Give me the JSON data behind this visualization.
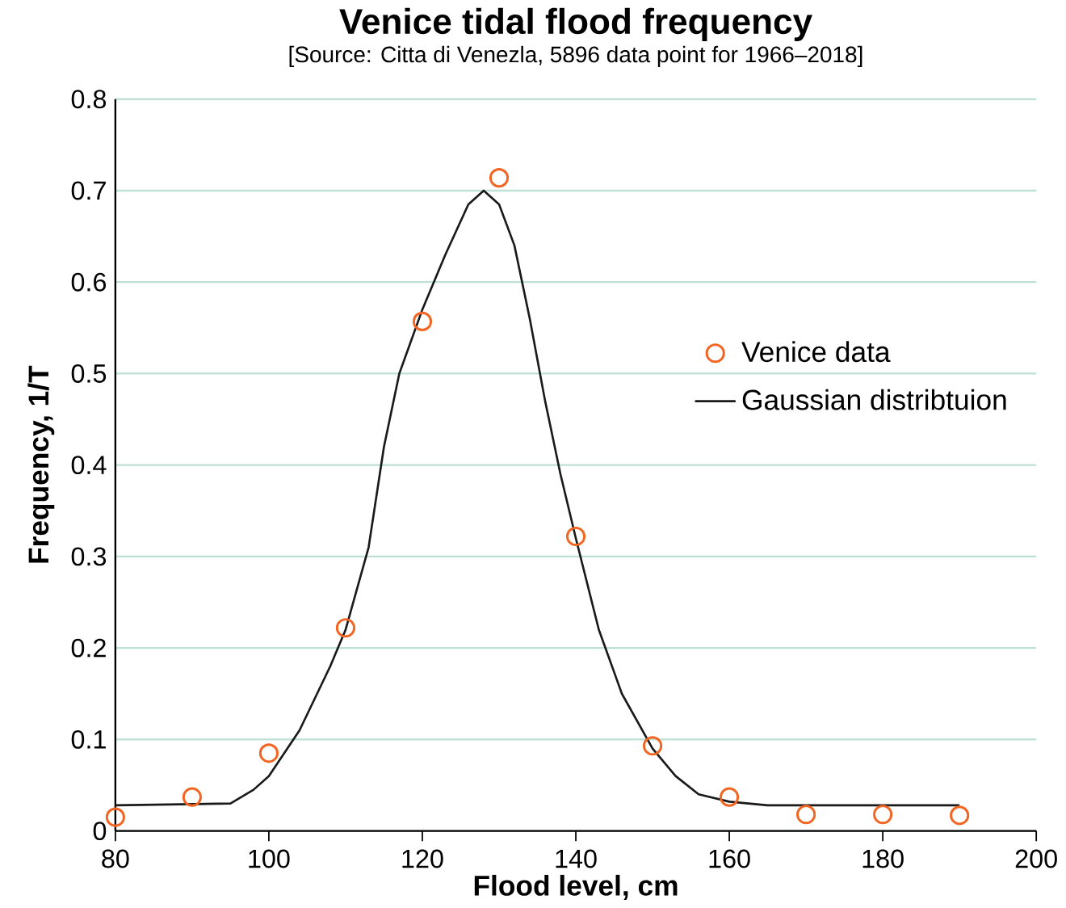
{
  "chart_data": {
    "type": "scatter",
    "title": "Venice tidal flood frequency",
    "subtitle": "[Source: Citta di Venezla, 5896 data point for 1966–2018]",
    "xlabel": "Flood level, cm",
    "ylabel": "Frequency, 1/T",
    "xlim": [
      80,
      200
    ],
    "ylim": [
      0,
      0.8
    ],
    "xticks": [
      80,
      100,
      120,
      140,
      160,
      180,
      200
    ],
    "yticks": [
      0,
      0.1,
      0.2,
      0.3,
      0.4,
      0.5,
      0.6,
      0.7,
      0.8
    ],
    "grid": "y",
    "legend": "right",
    "series": [
      {
        "name": "Venice data",
        "marker": "circle",
        "color": "#f26522",
        "x": [
          80,
          90,
          100,
          110,
          120,
          130,
          140,
          150,
          160,
          170,
          180,
          190
        ],
        "values": [
          0.015,
          0.037,
          0.085,
          0.222,
          0.557,
          0.714,
          0.322,
          0.093,
          0.037,
          0.018,
          0.018,
          0.017
        ]
      },
      {
        "name": "Gaussian distribtuion",
        "type": "line",
        "marker": "none",
        "line_style": "solid",
        "color": "#1a1a1a",
        "x": [
          80,
          95,
          98,
          100,
          104,
          108,
          110,
          113,
          115,
          117,
          120,
          123,
          126,
          128,
          130,
          132,
          134,
          136,
          138,
          140,
          143,
          146,
          150,
          153,
          156,
          160,
          165,
          190
        ],
        "values": [
          0.028,
          0.03,
          0.045,
          0.06,
          0.11,
          0.18,
          0.22,
          0.31,
          0.42,
          0.5,
          0.57,
          0.63,
          0.685,
          0.7,
          0.685,
          0.64,
          0.56,
          0.47,
          0.39,
          0.32,
          0.22,
          0.15,
          0.09,
          0.06,
          0.04,
          0.032,
          0.028,
          0.028
        ]
      }
    ]
  }
}
